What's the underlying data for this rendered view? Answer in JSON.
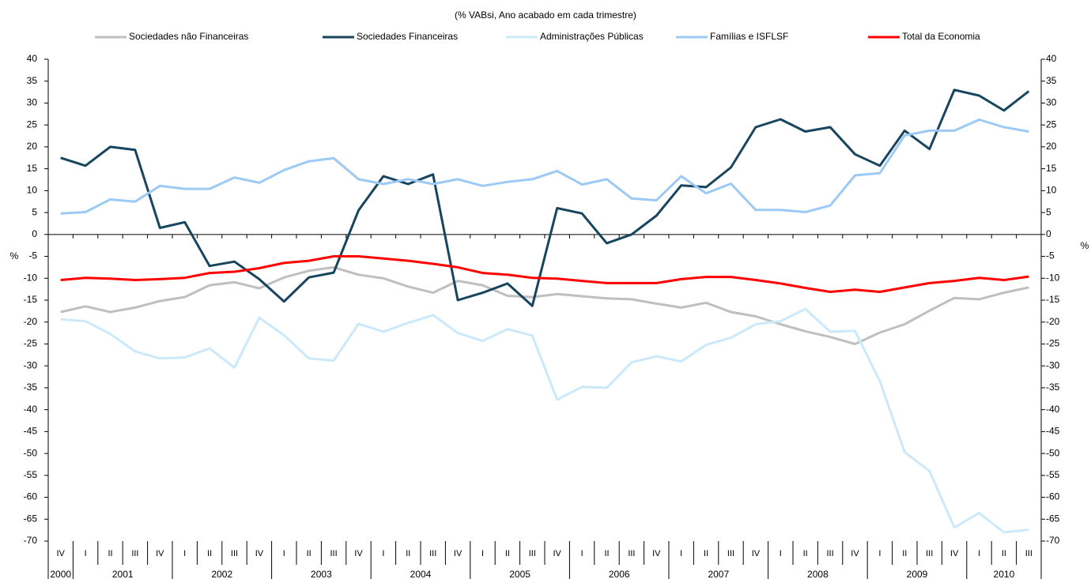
{
  "chart_data": {
    "type": "line",
    "subtitle": "(% VABsi, Ano acabado em cada trimestre)",
    "ylabel": "%",
    "y2label": "%",
    "categories": [
      "IV",
      "I",
      "II",
      "III",
      "IV",
      "I",
      "II",
      "III",
      "IV",
      "I",
      "II",
      "III",
      "IV",
      "I",
      "II",
      "III",
      "IV",
      "I",
      "II",
      "III",
      "IV",
      "I",
      "II",
      "III",
      "IV",
      "I",
      "II",
      "III",
      "IV",
      "I",
      "II",
      "III",
      "IV",
      "I",
      "II",
      "III",
      "IV",
      "I",
      "II",
      "III"
    ],
    "x_groups": [
      {
        "label": "2000",
        "count": 1
      },
      {
        "label": "2001",
        "count": 4
      },
      {
        "label": "2002",
        "count": 4
      },
      {
        "label": "2003",
        "count": 4
      },
      {
        "label": "2004",
        "count": 4
      },
      {
        "label": "2005",
        "count": 4
      },
      {
        "label": "2006",
        "count": 4
      },
      {
        "label": "2007",
        "count": 4
      },
      {
        "label": "2008",
        "count": 4
      },
      {
        "label": "2009",
        "count": 4
      },
      {
        "label": "2010",
        "count": 3
      }
    ],
    "series": [
      {
        "name": "Sociedades não Financeiras",
        "color": "#bfbfbf",
        "values": [
          -17.7,
          -16.4,
          -17.7,
          -16.7,
          -15.2,
          -14.3,
          -11.6,
          -10.9,
          -12.3,
          -9.8,
          -8.3,
          -7.5,
          -9.2,
          -10,
          -11.9,
          -13.3,
          -10.6,
          -11.6,
          -14,
          -14.3,
          -13.6,
          -14.1,
          -14.6,
          -14.8,
          -15.8,
          -16.7,
          -15.6,
          -17.7,
          -18.7,
          -20.5,
          -22.1,
          -23.4,
          -25,
          -22.4,
          -20.5,
          -17.4,
          -14.5,
          -14.8,
          -13.3,
          -12.1
        ]
      },
      {
        "name": "Sociedades Financeiras",
        "color": "#17455e",
        "values": [
          17.5,
          15.7,
          20,
          19.3,
          1.5,
          2.8,
          -7.2,
          -6.2,
          -10.2,
          -15.3,
          -9.8,
          -8.7,
          5.5,
          13.3,
          11.5,
          13.7,
          -15,
          -13.3,
          -11.2,
          -16.3,
          6,
          4.8,
          -2,
          0,
          4.3,
          11.2,
          10.8,
          15.3,
          24.5,
          26.3,
          23.5,
          24.5,
          18.3,
          15.7,
          23.7,
          19.5,
          33,
          31.7,
          28.3,
          32.7
        ]
      },
      {
        "name": "Administrações Públicas",
        "color": "#cce9fb",
        "values": [
          -19.4,
          -19.8,
          -22.7,
          -26.7,
          -28.3,
          -28.1,
          -26,
          -30.4,
          -19,
          -23,
          -28.3,
          -28.8,
          -20.4,
          -22.2,
          -20.2,
          -18.4,
          -22.5,
          -24.3,
          -21.6,
          -23.1,
          -37.7,
          -34.8,
          -35,
          -29.2,
          -27.8,
          -29,
          -25.2,
          -23.6,
          -20.5,
          -19.8,
          -17,
          -22.2,
          -22,
          -33.5,
          -49.7,
          -54,
          -66.9,
          -63.6,
          -68,
          -67.4
        ]
      },
      {
        "name": "Famílias e ISFLSF",
        "color": "#9ccaf4",
        "values": [
          4.8,
          5.1,
          8,
          7.5,
          11.1,
          10.4,
          10.4,
          13,
          11.8,
          14.7,
          16.7,
          17.4,
          12.6,
          11.5,
          12.6,
          11.5,
          12.6,
          11.1,
          12,
          12.6,
          14.5,
          11.4,
          12.6,
          8.2,
          7.8,
          13.3,
          9.4,
          11.6,
          5.6,
          5.6,
          5.1,
          6.6,
          13.5,
          14,
          22.6,
          23.7,
          23.7,
          26.2,
          24.5,
          23.5
        ]
      },
      {
        "name": "Total da Economia",
        "color": "#ff0000",
        "values": [
          -10.4,
          -9.9,
          -10.1,
          -10.4,
          -10.2,
          -9.9,
          -8.8,
          -8.5,
          -7.7,
          -6.5,
          -6,
          -5,
          -5,
          -5.5,
          -6,
          -6.7,
          -7.5,
          -8.8,
          -9.2,
          -9.9,
          -10.1,
          -10.6,
          -11.1,
          -11.1,
          -11.1,
          -10.2,
          -9.7,
          -9.7,
          -10.4,
          -11.2,
          -12.2,
          -13.1,
          -12.6,
          -13.1,
          -12.1,
          -11.1,
          -10.6,
          -9.9,
          -10.4,
          -9.6
        ]
      }
    ],
    "ylim": [
      -70,
      40
    ],
    "yticks": [
      -70,
      -65,
      -60,
      -55,
      -50,
      -45,
      -40,
      -35,
      -30,
      -25,
      -20,
      -15,
      -10,
      -5,
      0,
      5,
      10,
      15,
      20,
      25,
      30,
      35,
      40
    ],
    "y2lim": [
      -70,
      40
    ],
    "y2ticks": [
      -70,
      -65,
      -60,
      -55,
      -50,
      -45,
      -40,
      -35,
      -30,
      -25,
      -20,
      -15,
      -10,
      -5,
      0,
      5,
      10,
      15,
      20,
      25,
      30,
      35,
      40
    ],
    "grid": false,
    "legend": "top"
  }
}
